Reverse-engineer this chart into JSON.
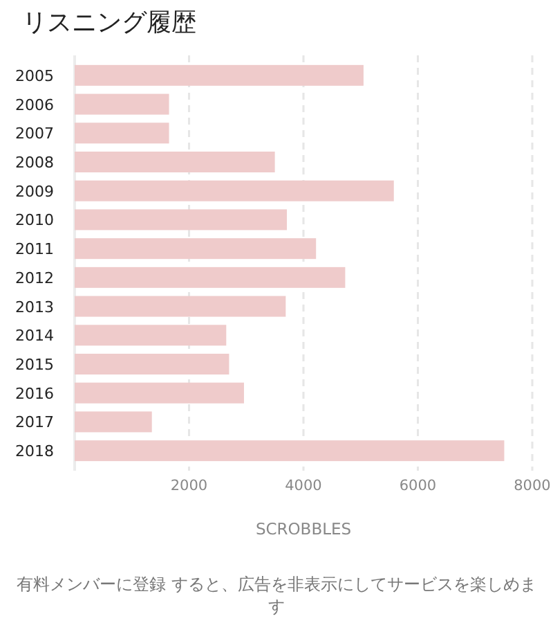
{
  "chart_data": {
    "type": "bar",
    "orientation": "horizontal",
    "title": "リスニング履歴",
    "categories": [
      "2005",
      "2006",
      "2007",
      "2008",
      "2009",
      "2010",
      "2011",
      "2012",
      "2013",
      "2014",
      "2015",
      "2016",
      "2017",
      "2018"
    ],
    "values": [
      5050,
      1650,
      1650,
      3500,
      5580,
      3710,
      4220,
      4730,
      3690,
      2650,
      2700,
      2960,
      1350,
      7510
    ],
    "color": "#efcbcb",
    "xlabel": "SCROBBLES",
    "xlim": [
      0,
      8000
    ],
    "xticks": [
      2000,
      4000,
      6000,
      8000
    ],
    "grid": "x",
    "annotations": [
      "有料メンバーに登録 すると、広告を非表示にしてサービスを楽しめます"
    ]
  }
}
